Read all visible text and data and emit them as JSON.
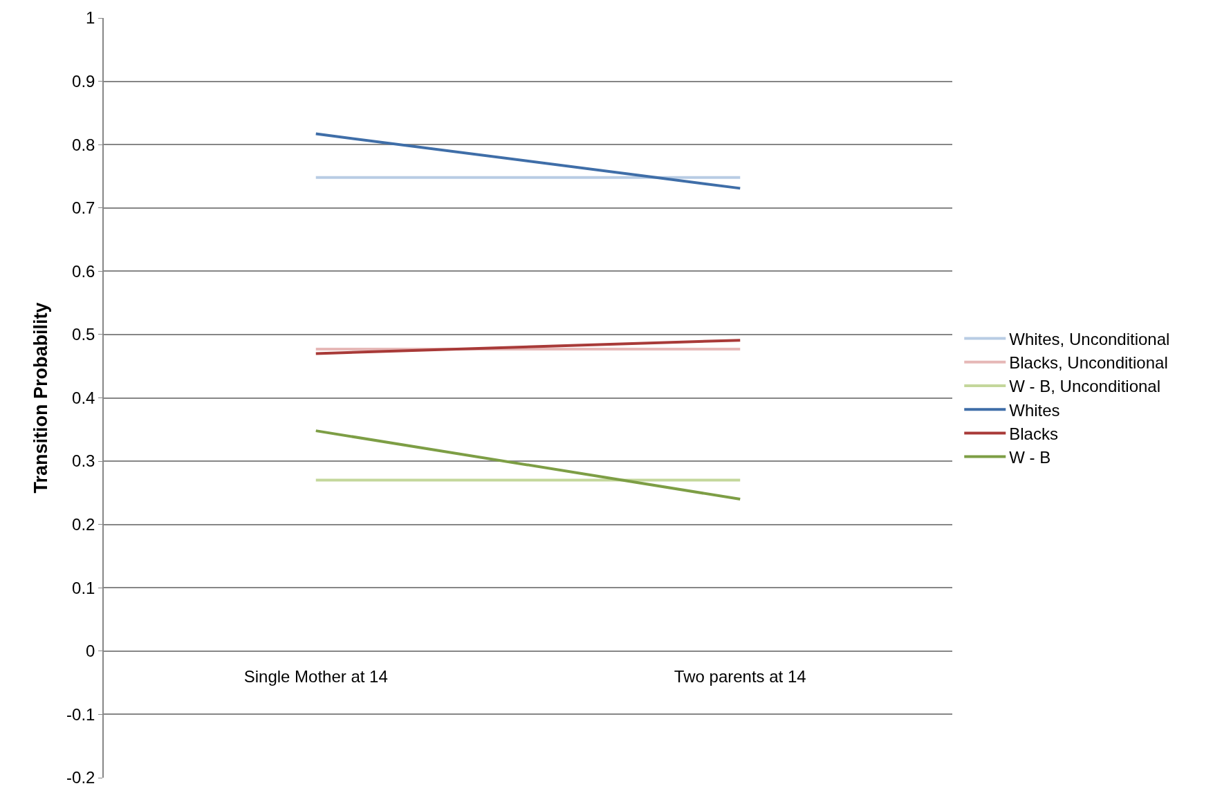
{
  "chart_data": {
    "type": "line",
    "ylabel": "Transition Probability",
    "categories": [
      "Single Mother at 14",
      "Two parents at 14"
    ],
    "series": [
      {
        "name": "Whites, Unconditional",
        "color": "#b8cce4",
        "values": [
          0.748,
          0.748
        ]
      },
      {
        "name": "Blacks, Unconditional",
        "color": "#e6b8b7",
        "values": [
          0.477,
          0.477
        ]
      },
      {
        "name": "W - B, Unconditional",
        "color": "#c4d79b",
        "values": [
          0.27,
          0.27
        ]
      },
      {
        "name": "Whites",
        "color": "#3f6ea8",
        "values": [
          0.817,
          0.731
        ]
      },
      {
        "name": "Blacks",
        "color": "#a83a38",
        "values": [
          0.47,
          0.491
        ]
      },
      {
        "name": "W - B",
        "color": "#7d9e45",
        "values": [
          0.348,
          0.24
        ]
      }
    ],
    "ylim": [
      -0.2,
      1
    ],
    "yticks": [
      -0.2,
      -0.1,
      0,
      0.1,
      0.2,
      0.3,
      0.4,
      0.5,
      0.6,
      0.7,
      0.8,
      0.9,
      1
    ],
    "grid": "y",
    "legend": "right",
    "marker": "none",
    "line_style": "solid"
  }
}
